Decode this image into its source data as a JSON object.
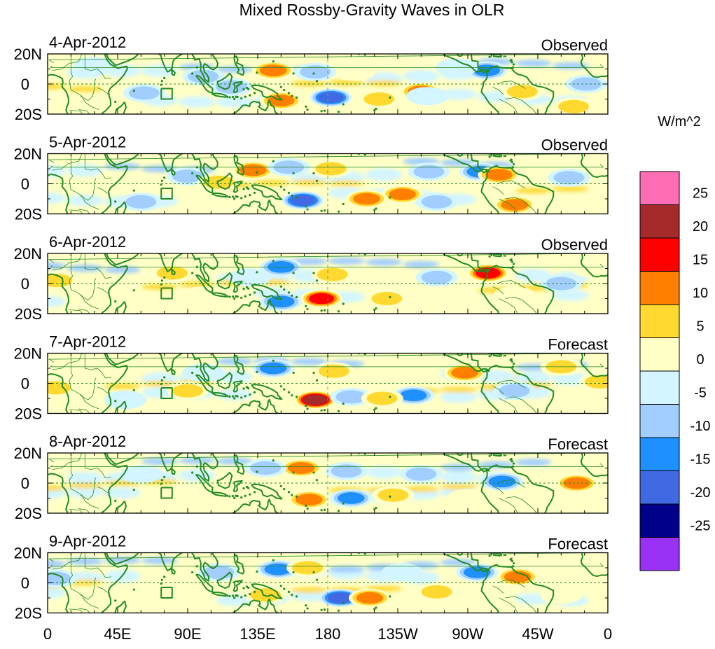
{
  "title": "Mixed Rossby-Gravity Waves in OLR",
  "y_tick_labels": [
    "20N",
    "0",
    "20S"
  ],
  "x_tick_labels": [
    "0",
    "45E",
    "90E",
    "135E",
    "180",
    "135W",
    "90W",
    "45W",
    "0"
  ],
  "colorbar": {
    "unit": "W/m^2",
    "labels": [
      "25",
      "20",
      "15",
      "10",
      "5",
      "0",
      "-5",
      "-10",
      "-15",
      "-20",
      "-25"
    ],
    "colors": [
      "#ff6eb4",
      "#a52a2a",
      "#ff0000",
      "#ff7f00",
      "#ffd830",
      "#ffffc6",
      "#d2f5ff",
      "#a2cdff",
      "#1e90ff",
      "#4169e1",
      "#00008b",
      "#9a32f5"
    ]
  },
  "land_color": "#228b22",
  "panels": [
    {
      "date": "4-Apr-2012",
      "status": "Observed",
      "anomalies": [
        {
          "lon": 197,
          "lat": 8,
          "v": 5
        },
        {
          "lon": 240,
          "lat": -5,
          "v": 14
        },
        {
          "lon": 145,
          "lat": 9,
          "v": 13
        },
        {
          "lon": 150,
          "lat": -11,
          "v": 12
        },
        {
          "lon": 213,
          "lat": -10,
          "v": 7
        },
        {
          "lon": 244,
          "lat": -8,
          "v": -5
        },
        {
          "lon": 182,
          "lat": -9,
          "v": -16
        },
        {
          "lon": 282,
          "lat": 9,
          "v": -15
        },
        {
          "lon": 62,
          "lat": -6,
          "v": -9
        },
        {
          "lon": 100,
          "lat": 5,
          "v": -7
        },
        {
          "lon": 172,
          "lat": 8,
          "v": -7
        },
        {
          "lon": 346,
          "lat": 0,
          "v": -9
        },
        {
          "lon": 338,
          "lat": -15,
          "v": 6
        },
        {
          "lon": 118,
          "lat": -2,
          "v": -6
        },
        {
          "lon": 263,
          "lat": 11,
          "v": -5
        },
        {
          "lon": 305,
          "lat": -5,
          "v": 7
        },
        {
          "lon": 30,
          "lat": 12,
          "v": -4
        }
      ]
    },
    {
      "date": "5-Apr-2012",
      "status": "Observed",
      "anomalies": [
        {
          "lon": 132,
          "lat": 9,
          "v": 11
        },
        {
          "lon": 228,
          "lat": -7,
          "v": 14
        },
        {
          "lon": 278,
          "lat": 8,
          "v": -14
        },
        {
          "lon": 290,
          "lat": 6,
          "v": 13
        },
        {
          "lon": 164,
          "lat": -11,
          "v": -16
        },
        {
          "lon": 300,
          "lat": -14,
          "v": 11
        },
        {
          "lon": 182,
          "lat": 10,
          "v": 6
        },
        {
          "lon": 205,
          "lat": -10,
          "v": 11
        },
        {
          "lon": 155,
          "lat": 11,
          "v": -8
        },
        {
          "lon": 245,
          "lat": 8,
          "v": -6
        },
        {
          "lon": 90,
          "lat": 5,
          "v": -7
        },
        {
          "lon": 110,
          "lat": 1,
          "v": 6
        },
        {
          "lon": 335,
          "lat": 4,
          "v": -6
        },
        {
          "lon": 60,
          "lat": -12,
          "v": -6
        },
        {
          "lon": 250,
          "lat": -12,
          "v": -6
        }
      ]
    },
    {
      "date": "6-Apr-2012",
      "status": "Observed",
      "anomalies": [
        {
          "lon": 176,
          "lat": -10,
          "v": 20
        },
        {
          "lon": 283,
          "lat": 7,
          "v": 17
        },
        {
          "lon": 150,
          "lat": 11,
          "v": -13
        },
        {
          "lon": 150,
          "lat": -12,
          "v": -11
        },
        {
          "lon": 218,
          "lat": -10,
          "v": 7
        },
        {
          "lon": 250,
          "lat": 4,
          "v": -8
        },
        {
          "lon": 330,
          "lat": 0,
          "v": -10
        },
        {
          "lon": 183,
          "lat": 6,
          "v": 6
        },
        {
          "lon": 80,
          "lat": 7,
          "v": 6
        },
        {
          "lon": 100,
          "lat": -8,
          "v": 5
        },
        {
          "lon": 6,
          "lat": 2,
          "v": 6
        },
        {
          "lon": 300,
          "lat": -8,
          "v": 5
        },
        {
          "lon": 130,
          "lat": 4,
          "v": -5
        },
        {
          "lon": 350,
          "lat": 10,
          "v": 4
        }
      ]
    },
    {
      "date": "7-Apr-2012",
      "status": "Forecast",
      "anomalies": [
        {
          "lon": 172,
          "lat": -11,
          "v": 21
        },
        {
          "lon": 268,
          "lat": 7,
          "v": 14
        },
        {
          "lon": 145,
          "lat": 10,
          "v": -12
        },
        {
          "lon": 235,
          "lat": -8,
          "v": -14
        },
        {
          "lon": 195,
          "lat": -9,
          "v": -10
        },
        {
          "lon": 184,
          "lat": 8,
          "v": 7
        },
        {
          "lon": 215,
          "lat": -10,
          "v": 6
        },
        {
          "lon": 300,
          "lat": -5,
          "v": -8
        },
        {
          "lon": 330,
          "lat": 11,
          "v": 7
        },
        {
          "lon": 355,
          "lat": 1,
          "v": 7
        },
        {
          "lon": 90,
          "lat": -5,
          "v": 6
        },
        {
          "lon": 100,
          "lat": 7,
          "v": -5
        },
        {
          "lon": 5,
          "lat": -3,
          "v": 6
        },
        {
          "lon": 50,
          "lat": -11,
          "v": -5
        }
      ]
    },
    {
      "date": "8-Apr-2012",
      "status": "Forecast",
      "anomalies": [
        {
          "lon": 163,
          "lat": 10,
          "v": 14
        },
        {
          "lon": 168,
          "lat": -11,
          "v": 15
        },
        {
          "lon": 292,
          "lat": 1,
          "v": -14
        },
        {
          "lon": 195,
          "lat": -10,
          "v": -12
        },
        {
          "lon": 192,
          "lat": 8,
          "v": -7
        },
        {
          "lon": 222,
          "lat": -8,
          "v": 7
        },
        {
          "lon": 240,
          "lat": 6,
          "v": -8
        },
        {
          "lon": 340,
          "lat": 0,
          "v": 11
        },
        {
          "lon": 140,
          "lat": 10,
          "v": -8
        },
        {
          "lon": 110,
          "lat": -8,
          "v": 5
        },
        {
          "lon": 60,
          "lat": 6,
          "v": -5
        },
        {
          "lon": 270,
          "lat": -10,
          "v": 5
        }
      ]
    },
    {
      "date": "9-Apr-2012",
      "status": "Forecast",
      "anomalies": [
        {
          "lon": 188,
          "lat": -10,
          "v": -16
        },
        {
          "lon": 302,
          "lat": 4,
          "v": 13
        },
        {
          "lon": 276,
          "lat": 7,
          "v": -12
        },
        {
          "lon": 148,
          "lat": 9,
          "v": -11
        },
        {
          "lon": 167,
          "lat": 10,
          "v": 8
        },
        {
          "lon": 207,
          "lat": -10,
          "v": 11
        },
        {
          "lon": 250,
          "lat": -6,
          "v": 7
        },
        {
          "lon": 140,
          "lat": -8,
          "v": 6
        },
        {
          "lon": 100,
          "lat": -4,
          "v": 5
        },
        {
          "lon": 110,
          "lat": 7,
          "v": -6
        },
        {
          "lon": 228,
          "lat": 7,
          "v": -5
        },
        {
          "lon": 5,
          "lat": 3,
          "v": -7
        },
        {
          "lon": 330,
          "lat": -8,
          "v": 5
        }
      ]
    }
  ]
}
